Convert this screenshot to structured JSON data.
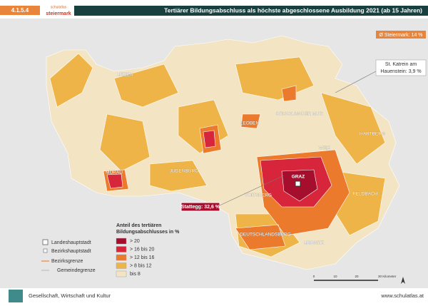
{
  "header": {
    "code": "4.1.5.4",
    "logo_top": "schulatlas",
    "logo_bottom": "steiermark",
    "title": "Tertiärer Bildungsabschluss als höchste abgeschlossene Ausbildung 2021 (ab 15 Jahren)"
  },
  "map": {
    "average_note": "Ø Steiermark: 14 %",
    "callout_min": [
      "St. Katrein am",
      "Hauenstein: 3,9 %"
    ],
    "callout_max": "Stattegg: 32,6 %",
    "places": [
      "LIEZEN",
      "BRUCK AN DER MUR",
      "LEOBEN",
      "HARTBERG",
      "MURAU",
      "JUDENBURG",
      "WEIZ",
      "GRAZ",
      "VOITSBERG",
      "FELDBACH",
      "DEUTSCHLANDSBERG",
      "LEIBNITZ"
    ]
  },
  "legend": {
    "title": [
      "Anteil des tertiären",
      "Bildungsabschlusses in %"
    ],
    "classes": [
      {
        "label": "> 20",
        "color": "#a50f2d"
      },
      {
        "label": "> 16 bis 20",
        "color": "#d7263b"
      },
      {
        "label": "> 12 bis 16",
        "color": "#ec7a2c"
      },
      {
        "label": "> 8 bis 12",
        "color": "#efb448"
      },
      {
        "label": "bis 8",
        "color": "#f3e5c4"
      }
    ],
    "symbols": [
      "Landeshauptstadt",
      "Bezirkshauptstadt",
      "Bezirksgrenze",
      "Gemeindegrenze"
    ]
  },
  "scale": [
    "0",
    "10",
    "20",
    "30 Kilometer"
  ],
  "footer": {
    "subject": "Gesellschaft, Wirtschaft und Kultur",
    "url": "www.schulatlas.at"
  }
}
